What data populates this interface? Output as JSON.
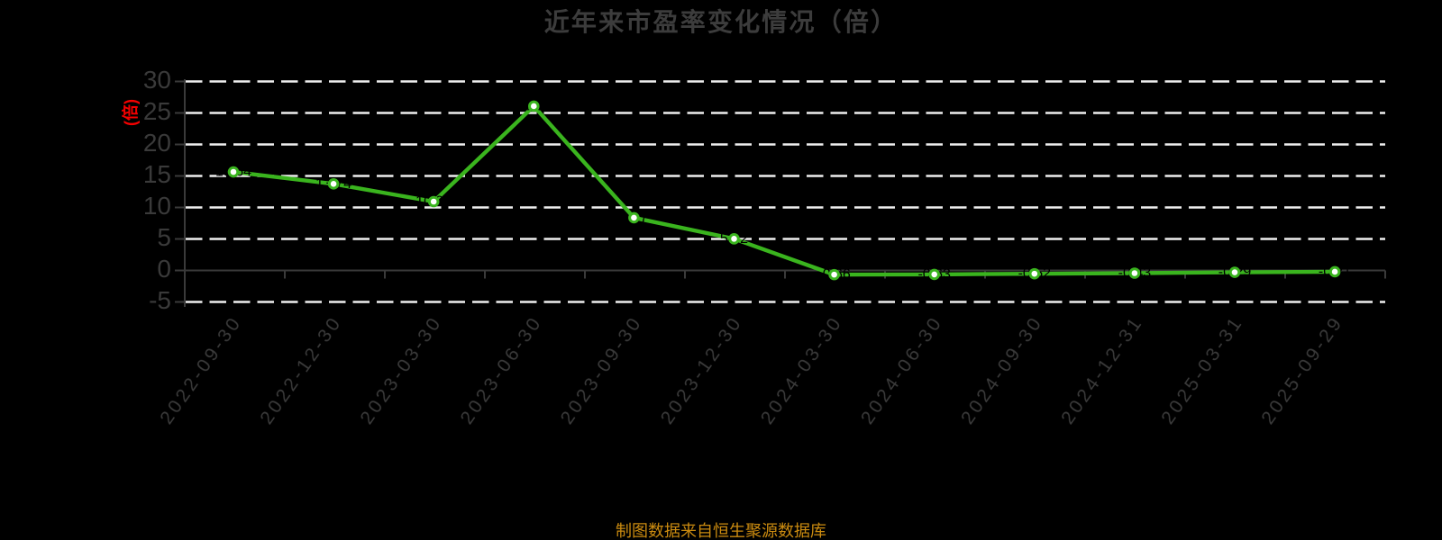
{
  "chart_data": {
    "type": "line",
    "title": "近年来市盈率变化情况（倍）",
    "ylabel": "(倍)",
    "xlabel": "",
    "footer": "制图数据来自恒生聚源数据库",
    "legend_position": "none",
    "grid": "horizontal-dashed",
    "categories": [
      "2022-09-30",
      "2022-12-30",
      "2023-03-30",
      "2023-06-30",
      "2023-09-30",
      "2023-12-30",
      "2024-03-30",
      "2024-06-30",
      "2024-09-30",
      "2024-12-31",
      "2025-03-31",
      "2025-09-29"
    ],
    "values": [
      15.64,
      13.74,
      10.93,
      26.08,
      8.37,
      5.02,
      -0.66,
      -0.63,
      -0.52,
      -0.43,
      -0.29,
      -0.21
    ],
    "point_labels": [
      "15.64",
      "13.74",
      "10.93",
      "26.08",
      "8.37",
      "5.02",
      "-0.66",
      "-0.63",
      "-0.52",
      "-0.43",
      "-0.29",
      "-0.21"
    ],
    "yticks": [
      30,
      25,
      20,
      15,
      10,
      5,
      0,
      -5
    ],
    "ylim": [
      -5,
      30
    ],
    "colors": {
      "background": "#000000",
      "line": "#3ab41e",
      "marker_face": "#ffffff",
      "grid": "#efefef",
      "axis": "#3a3a3a",
      "tick_text": "#3a3a3a",
      "title_text": "#3c3c3c",
      "ylabel_text": "#f40000",
      "footer_text": "#cb8b10",
      "point_label_text": "#000000"
    }
  }
}
